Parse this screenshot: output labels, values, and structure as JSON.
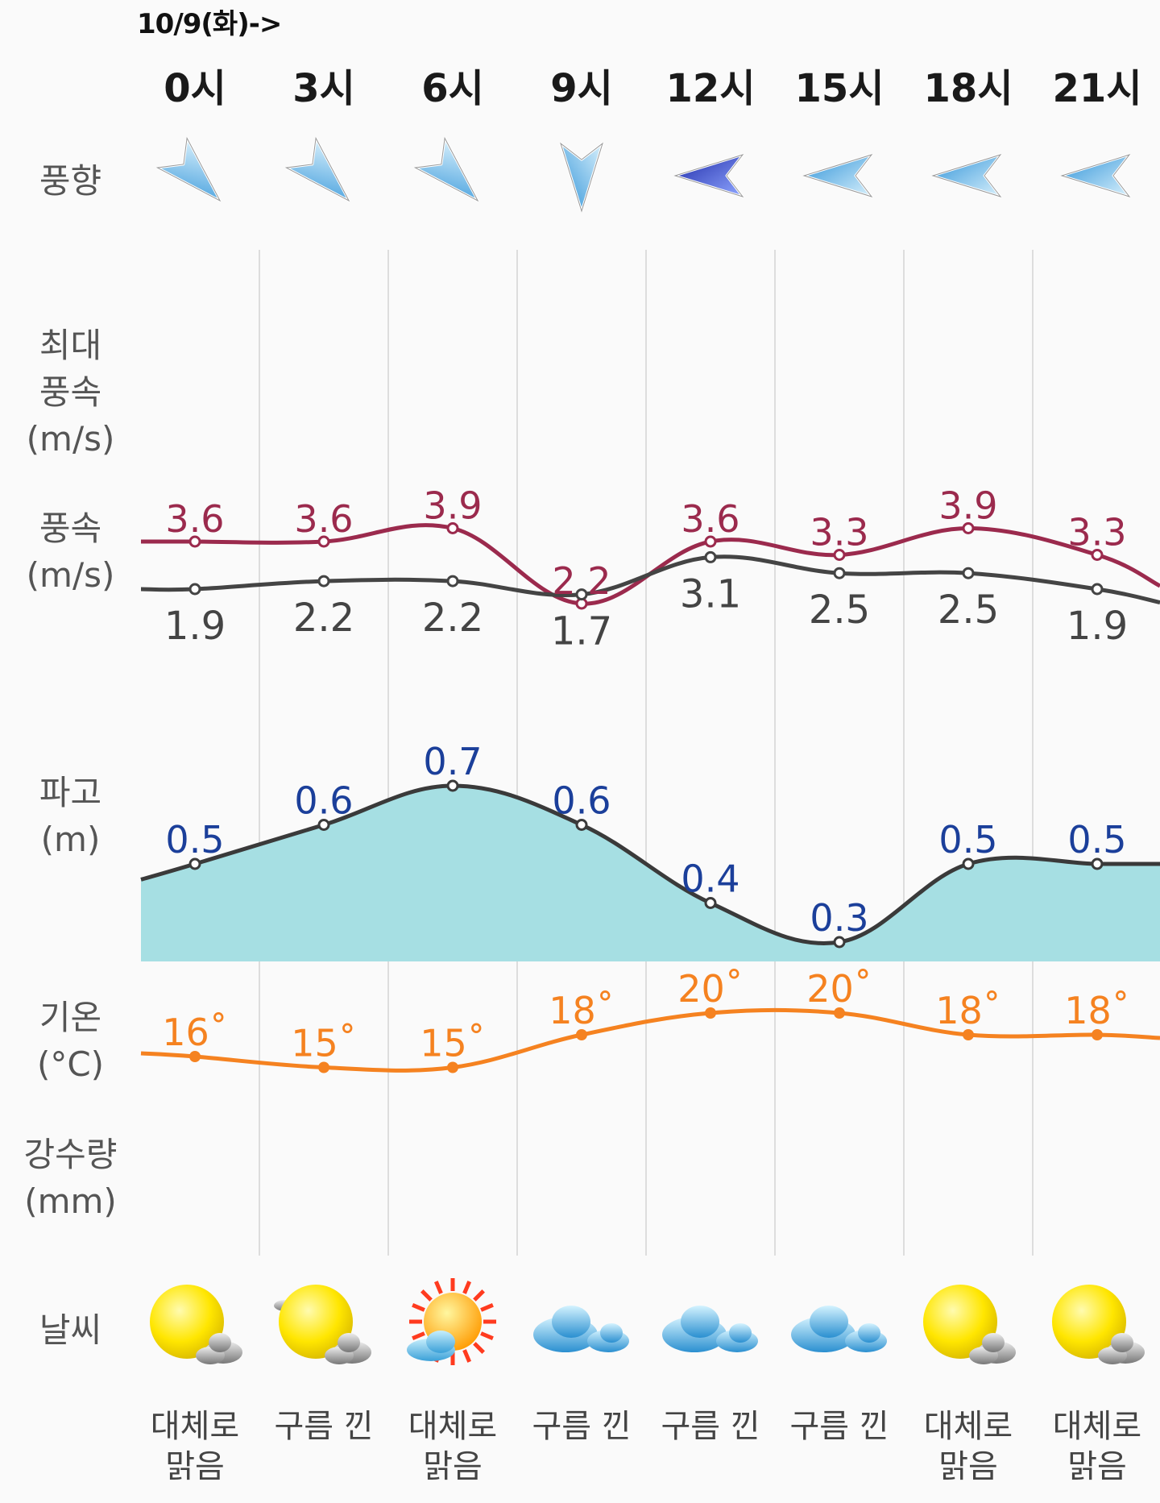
{
  "header": {
    "date": "10/9(화)->"
  },
  "hours": [
    "0시",
    "3시",
    "6시",
    "9시",
    "12시",
    "15시",
    "18시",
    "21시"
  ],
  "labels": {
    "wind_dir": "풍향",
    "max_wind_1": "최대",
    "max_wind_2": "풍속",
    "max_wind_3": "(m/s)",
    "wind_1": "풍속",
    "wind_2": "(m/s)",
    "wave_1": "파고",
    "wave_2": "(m)",
    "temp_1": "기온",
    "temp_2": "(°C)",
    "rain_1": "강수량",
    "rain_2": "(mm)",
    "weather": "날씨"
  },
  "wind_direction_icons": [
    "arrow-se-icon",
    "arrow-se-icon",
    "arrow-se-icon",
    "arrow-s-icon",
    "arrow-w-icon",
    "arrow-w-icon",
    "arrow-w-icon",
    "arrow-w-icon"
  ],
  "conditions": [
    {
      "line1": "대체로",
      "line2": "맑음",
      "icon": "sun-cloud-icon"
    },
    {
      "line1": "구름 낀",
      "line2": "",
      "icon": "sun-cloud-icon"
    },
    {
      "line1": "대체로",
      "line2": "맑음",
      "icon": "sunny-cloud-icon"
    },
    {
      "line1": "구름 낀",
      "line2": "",
      "icon": "cloudy-icon"
    },
    {
      "line1": "구름 낀",
      "line2": "",
      "icon": "cloudy-icon"
    },
    {
      "line1": "구름 낀",
      "line2": "",
      "icon": "cloudy-icon"
    },
    {
      "line1": "대체로",
      "line2": "맑음",
      "icon": "sun-cloud-icon"
    },
    {
      "line1": "대체로",
      "line2": "맑음",
      "icon": "sun-cloud-icon"
    }
  ],
  "colors": {
    "max_wind": "#9b2a4d",
    "wind": "#444444",
    "wave_line": "#3a3a3a",
    "wave_fill": "#a6dfe3",
    "wave_label": "#1b3f9a",
    "temp": "#f58220",
    "grid": "#dddddd"
  },
  "chart_data": [
    {
      "type": "line",
      "x": [
        "0시",
        "3시",
        "6시",
        "9시",
        "12시",
        "15시",
        "18시",
        "21시"
      ],
      "series": [
        {
          "values": [
            3.6,
            3.6,
            3.9,
            2.2,
            3.6,
            3.3,
            3.9,
            3.3
          ],
          "labels": [
            "3.6",
            "3.6",
            "3.9",
            "2.2",
            "3.6",
            "3.3",
            "3.9",
            "3.3"
          ]
        },
        {
          "values": [
            1.9,
            2.2,
            2.2,
            1.7,
            3.1,
            2.5,
            2.5,
            1.9
          ],
          "labels": [
            "1.9",
            "2.2",
            "2.2",
            "1.7",
            "3.1",
            "2.5",
            "2.5",
            "1.9"
          ]
        }
      ]
    },
    {
      "type": "area",
      "x": [
        "0시",
        "3시",
        "6시",
        "9시",
        "12시",
        "15시",
        "18시",
        "21시"
      ],
      "series": [
        {
          "values": [
            0.5,
            0.6,
            0.7,
            0.6,
            0.4,
            0.3,
            0.5,
            0.5
          ],
          "labels": [
            "0.5",
            "0.6",
            "0.7",
            "0.6",
            "0.4",
            "0.3",
            "0.5",
            "0.5"
          ]
        }
      ]
    },
    {
      "type": "line",
      "x": [
        "0시",
        "3시",
        "6시",
        "9시",
        "12시",
        "15시",
        "18시",
        "21시"
      ],
      "series": [
        {
          "values": [
            16,
            15,
            15,
            18,
            20,
            20,
            18,
            18
          ],
          "labels": [
            "16˚",
            "15˚",
            "15˚",
            "18˚",
            "20˚",
            "20˚",
            "18˚",
            "18˚"
          ]
        }
      ]
    }
  ]
}
